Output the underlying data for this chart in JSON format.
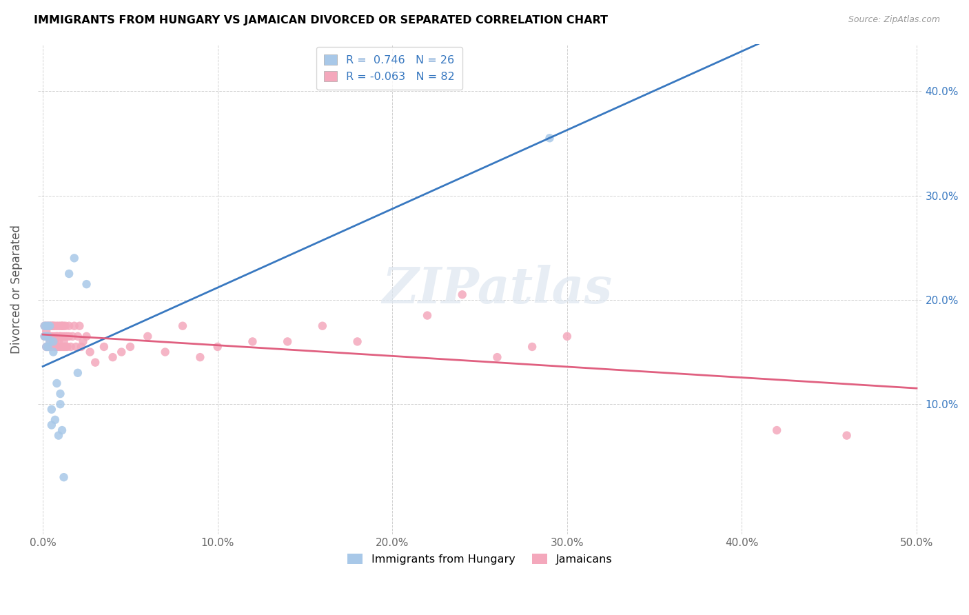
{
  "title": "IMMIGRANTS FROM HUNGARY VS JAMAICAN DIVORCED OR SEPARATED CORRELATION CHART",
  "source": "Source: ZipAtlas.com",
  "ylabel_label": "Divorced or Separated",
  "xlim": [
    -0.003,
    0.503
  ],
  "ylim": [
    -0.025,
    0.445
  ],
  "r_hungary": 0.746,
  "n_hungary": 26,
  "r_jamaican": -0.063,
  "n_jamaican": 82,
  "color_hungary": "#a8c8e8",
  "color_jamaican": "#f4a8bc",
  "trendline_hungary": "#3878c0",
  "trendline_jamaican": "#e06080",
  "legend_label_hungary": "Immigrants from Hungary",
  "legend_label_jamaican": "Jamaicans",
  "watermark": "ZIPatlas",
  "hungary_x": [
    0.001,
    0.001,
    0.002,
    0.002,
    0.002,
    0.003,
    0.003,
    0.003,
    0.004,
    0.004,
    0.005,
    0.005,
    0.006,
    0.006,
    0.007,
    0.008,
    0.009,
    0.01,
    0.01,
    0.011,
    0.012,
    0.015,
    0.018,
    0.02,
    0.025,
    0.29
  ],
  "hungary_y": [
    0.175,
    0.165,
    0.155,
    0.175,
    0.165,
    0.155,
    0.165,
    0.175,
    0.16,
    0.175,
    0.095,
    0.08,
    0.16,
    0.15,
    0.085,
    0.12,
    0.07,
    0.11,
    0.1,
    0.075,
    0.03,
    0.225,
    0.24,
    0.13,
    0.215,
    0.355
  ],
  "jamaican_x": [
    0.001,
    0.001,
    0.002,
    0.002,
    0.002,
    0.003,
    0.003,
    0.003,
    0.003,
    0.004,
    0.004,
    0.004,
    0.005,
    0.005,
    0.005,
    0.005,
    0.006,
    0.006,
    0.006,
    0.006,
    0.007,
    0.007,
    0.007,
    0.007,
    0.008,
    0.008,
    0.008,
    0.008,
    0.009,
    0.009,
    0.009,
    0.009,
    0.01,
    0.01,
    0.01,
    0.01,
    0.011,
    0.011,
    0.011,
    0.011,
    0.012,
    0.012,
    0.012,
    0.012,
    0.013,
    0.013,
    0.013,
    0.014,
    0.014,
    0.015,
    0.015,
    0.016,
    0.017,
    0.018,
    0.019,
    0.02,
    0.021,
    0.022,
    0.023,
    0.025,
    0.027,
    0.03,
    0.035,
    0.04,
    0.045,
    0.05,
    0.06,
    0.07,
    0.08,
    0.09,
    0.1,
    0.12,
    0.14,
    0.16,
    0.18,
    0.22,
    0.24,
    0.26,
    0.28,
    0.3,
    0.42,
    0.46
  ],
  "jamaican_y": [
    0.165,
    0.175,
    0.155,
    0.17,
    0.175,
    0.165,
    0.175,
    0.155,
    0.165,
    0.165,
    0.175,
    0.16,
    0.175,
    0.155,
    0.165,
    0.175,
    0.165,
    0.175,
    0.16,
    0.175,
    0.165,
    0.155,
    0.175,
    0.16,
    0.165,
    0.175,
    0.155,
    0.165,
    0.165,
    0.155,
    0.175,
    0.16,
    0.165,
    0.175,
    0.155,
    0.165,
    0.175,
    0.155,
    0.165,
    0.175,
    0.155,
    0.165,
    0.175,
    0.16,
    0.165,
    0.155,
    0.175,
    0.155,
    0.165,
    0.165,
    0.175,
    0.155,
    0.165,
    0.175,
    0.155,
    0.165,
    0.175,
    0.155,
    0.16,
    0.165,
    0.15,
    0.14,
    0.155,
    0.145,
    0.15,
    0.155,
    0.165,
    0.15,
    0.175,
    0.145,
    0.155,
    0.16,
    0.16,
    0.175,
    0.16,
    0.185,
    0.205,
    0.145,
    0.155,
    0.165,
    0.075,
    0.07
  ]
}
